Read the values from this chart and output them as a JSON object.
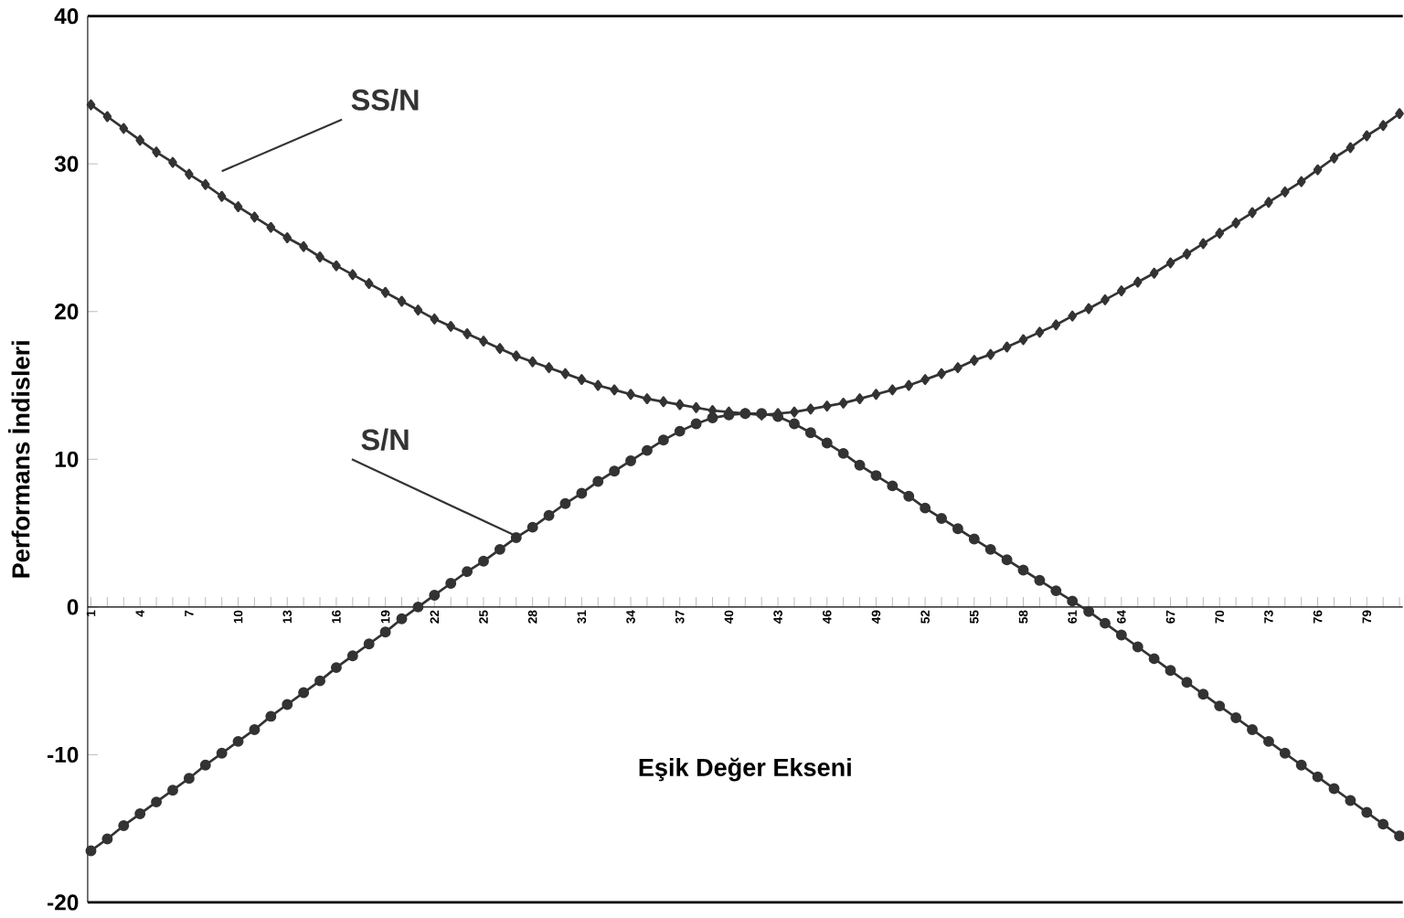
{
  "chart_data": {
    "type": "line",
    "xlabel": "Eşik Değer Ekseni",
    "ylabel": "Performans İndisleri",
    "categories": [
      "1",
      null,
      null,
      "4",
      null,
      null,
      "7",
      null,
      null,
      "10",
      null,
      null,
      "13",
      null,
      null,
      "16",
      null,
      null,
      "19",
      null,
      null,
      "22",
      null,
      null,
      "25",
      null,
      null,
      "28",
      null,
      null,
      "31",
      null,
      null,
      "34",
      null,
      null,
      "37",
      null,
      null,
      "40",
      null,
      null,
      "43",
      null,
      null,
      "46",
      null,
      null,
      "49",
      null,
      null,
      "52",
      null,
      null,
      "55",
      null,
      null,
      "58",
      null,
      null,
      "61",
      null,
      null,
      "64",
      null,
      null,
      "67",
      null,
      null,
      "70",
      null,
      null,
      "73",
      null,
      null,
      "76",
      null,
      null,
      "79",
      null,
      null
    ],
    "series": [
      {
        "name": "SS/N",
        "color": "#333333",
        "marker": "diamond",
        "values": [
          34.0,
          33.2,
          32.4,
          31.6,
          30.8,
          30.1,
          29.3,
          28.6,
          27.8,
          27.1,
          26.4,
          25.7,
          25.0,
          24.4,
          23.7,
          23.1,
          22.5,
          21.9,
          21.3,
          20.7,
          20.1,
          19.5,
          19.0,
          18.5,
          18.0,
          17.5,
          17.0,
          16.6,
          16.2,
          15.8,
          15.4,
          15.0,
          14.7,
          14.4,
          14.1,
          13.9,
          13.7,
          13.5,
          13.3,
          13.2,
          13.1,
          13.0,
          13.1,
          13.2,
          13.4,
          13.6,
          13.8,
          14.1,
          14.4,
          14.7,
          15.0,
          15.4,
          15.8,
          16.2,
          16.7,
          17.1,
          17.6,
          18.1,
          18.6,
          19.1,
          19.7,
          20.2,
          20.8,
          21.4,
          22.0,
          22.6,
          23.3,
          23.9,
          24.6,
          25.3,
          26.0,
          26.7,
          27.4,
          28.1,
          28.8,
          29.6,
          30.4,
          31.1,
          31.9,
          32.6,
          33.4
        ]
      },
      {
        "name": "S/N",
        "color": "#333333",
        "marker": "circle",
        "values": [
          -16.5,
          -15.7,
          -14.8,
          -14.0,
          -13.2,
          -12.4,
          -11.6,
          -10.7,
          -9.9,
          -9.1,
          -8.3,
          -7.4,
          -6.6,
          -5.8,
          -5.0,
          -4.1,
          -3.3,
          -2.5,
          -1.7,
          -0.8,
          0.0,
          0.8,
          1.6,
          2.4,
          3.1,
          3.9,
          4.7,
          5.4,
          6.2,
          7.0,
          7.7,
          8.5,
          9.2,
          9.9,
          10.6,
          11.3,
          11.9,
          12.4,
          12.8,
          13.0,
          13.1,
          13.1,
          12.9,
          12.4,
          11.8,
          11.1,
          10.4,
          9.6,
          8.9,
          8.2,
          7.5,
          6.7,
          6.0,
          5.3,
          4.6,
          3.9,
          3.2,
          2.5,
          1.8,
          1.1,
          0.4,
          -0.3,
          -1.1,
          -1.9,
          -2.7,
          -3.5,
          -4.3,
          -5.1,
          -5.9,
          -6.7,
          -7.5,
          -8.3,
          -9.1,
          -9.9,
          -10.7,
          -11.5,
          -12.3,
          -13.1,
          -13.9,
          -14.7,
          -15.5
        ]
      }
    ],
    "ylim": [
      -20,
      40
    ],
    "yticks": [
      -20,
      -10,
      0,
      10,
      20,
      30,
      40
    ],
    "grid": false,
    "legend": false
  }
}
